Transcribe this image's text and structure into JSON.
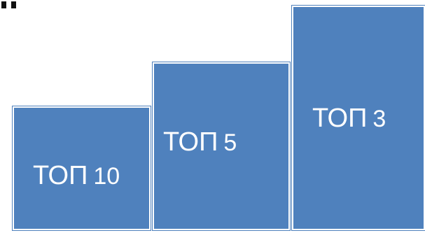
{
  "colors": {
    "step_fill": "#4f81bd",
    "step_text": "#ffffff",
    "background": "#ffffff"
  },
  "steps": [
    {
      "word": "ТОП",
      "number": "10"
    },
    {
      "word": "ТОП",
      "number": "5"
    },
    {
      "word": "ТОП",
      "number": "3"
    }
  ]
}
